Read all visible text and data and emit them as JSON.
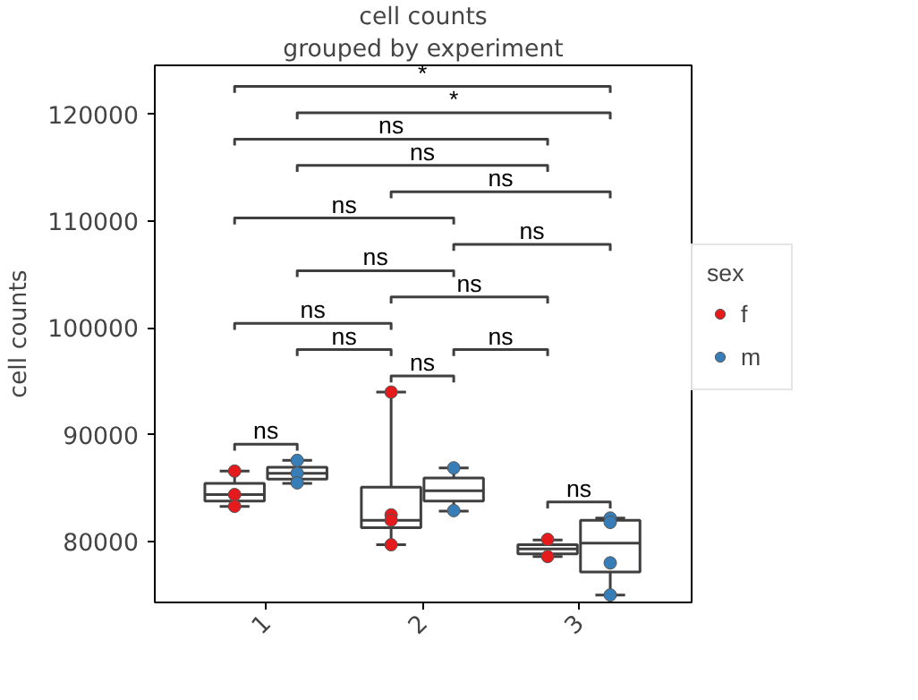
{
  "chart_data": {
    "type": "box",
    "title": "cell counts",
    "subtitle": "grouped by experiment",
    "ylabel": "cell counts",
    "legend_title": "sex",
    "categories": [
      "1",
      "2",
      "3"
    ],
    "ylim": [
      74300,
      124600
    ],
    "yticks": [
      80000,
      90000,
      100000,
      110000,
      120000
    ],
    "legend": "right",
    "marker": "circle",
    "series": [
      {
        "color": "#3f3f3f",
        "boxes": [
          {
            "low": 83300,
            "q1": 83800,
            "median": 84400,
            "q3": 85450,
            "high": 86600
          },
          {
            "low": 79700,
            "q1": 81300,
            "median": 82000,
            "q3": 85100,
            "high": 94000
          },
          {
            "low": 78600,
            "q1": 78850,
            "median": 79300,
            "q3": 79700,
            "high": 80150
          }
        ]
      },
      {
        "color": "#3f3f3f",
        "boxes": [
          {
            "low": 85450,
            "q1": 85850,
            "median": 86400,
            "q3": 86950,
            "high": 87600
          },
          {
            "low": 82850,
            "q1": 83800,
            "median": 84750,
            "q3": 85950,
            "high": 86900
          },
          {
            "low": 75000,
            "q1": 77150,
            "median": 79850,
            "q3": 82000,
            "high": 82200
          }
        ]
      },
      {
        "type": "scatter",
        "name": "f",
        "color": "#e41a1c",
        "x": [
          "1",
          "1",
          "1",
          "2",
          "2",
          "2",
          "2",
          "3",
          "3"
        ],
        "values": [
          86600,
          84400,
          83300,
          94000,
          82500,
          82000,
          79700,
          80200,
          78600
        ]
      },
      {
        "type": "scatter",
        "name": "m",
        "color": "#377eb8",
        "x": [
          "1",
          "1",
          "1",
          "2",
          "2",
          "3",
          "3",
          "3",
          "3"
        ],
        "values": [
          87600,
          86400,
          85500,
          86900,
          82900,
          82200,
          81800,
          78000,
          75000
        ]
      }
    ],
    "annotations": [
      "ns",
      "ns",
      "ns",
      "ns",
      "ns",
      "ns",
      "ns",
      "ns",
      "ns",
      "ns",
      "ns",
      "ns",
      "ns",
      "*",
      "*"
    ]
  }
}
